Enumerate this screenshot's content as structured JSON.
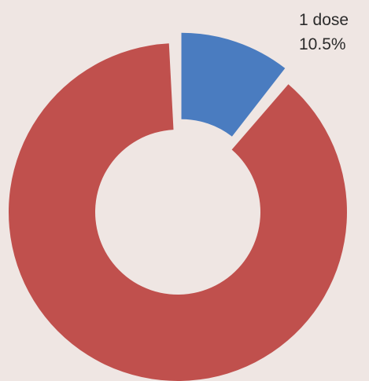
{
  "chart_data": {
    "type": "pie",
    "variant": "donut",
    "title": "",
    "slices": [
      {
        "label": "1 dose",
        "percent_label": "10.5%",
        "value": 10.5,
        "color": "#4a7cc0",
        "exploded": true
      },
      {
        "label": "",
        "percent_label": "",
        "value": 89.5,
        "color": "#c0504d",
        "exploded": false
      }
    ],
    "legend": "none",
    "background": "#efe6e3"
  }
}
